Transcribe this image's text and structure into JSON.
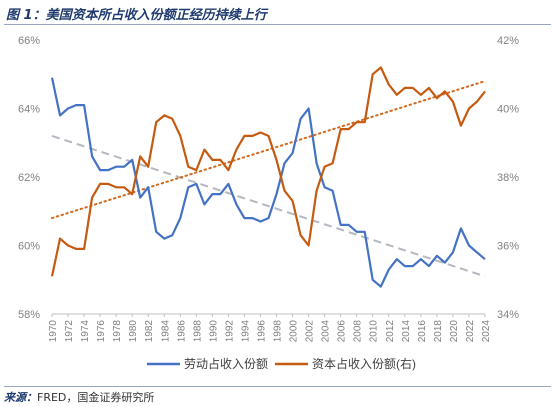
{
  "figure": {
    "title": "图 1：美国资本所占收入份额正经历持续上行",
    "source_label": "来源：",
    "source_text": "FRED，国金证券研究所"
  },
  "colors": {
    "labor": "#4472c4",
    "capital": "#c55a11",
    "labor_trend": "#b4b8c0",
    "capital_trend": "#d2691e",
    "axis_text": "#808080",
    "title": "#1f3a6e"
  },
  "chart_data": {
    "type": "line",
    "x": [
      1970,
      1971,
      1972,
      1973,
      1974,
      1975,
      1976,
      1977,
      1978,
      1979,
      1980,
      1981,
      1982,
      1983,
      1984,
      1985,
      1986,
      1987,
      1988,
      1989,
      1990,
      1991,
      1992,
      1993,
      1994,
      1995,
      1996,
      1997,
      1998,
      1999,
      2000,
      2001,
      2002,
      2003,
      2004,
      2005,
      2006,
      2007,
      2008,
      2009,
      2010,
      2011,
      2012,
      2013,
      2014,
      2015,
      2016,
      2017,
      2018,
      2019,
      2020,
      2021,
      2022,
      2023,
      2024
    ],
    "x_tick_labels": [
      "1970",
      "1972",
      "1974",
      "1976",
      "1978",
      "1980",
      "1982",
      "1984",
      "1986",
      "1988",
      "1990",
      "1992",
      "1994",
      "1996",
      "1998",
      "2000",
      "2002",
      "2004",
      "2006",
      "2008",
      "2010",
      "2012",
      "2014",
      "2016",
      "2018",
      "2020",
      "2022",
      "2024"
    ],
    "y_left": {
      "min": 58,
      "max": 66,
      "ticks": [
        "58%",
        "60%",
        "62%",
        "64%",
        "66%"
      ]
    },
    "y_right": {
      "min": 34,
      "max": 42,
      "ticks": [
        "34%",
        "36%",
        "38%",
        "40%",
        "42%"
      ]
    },
    "grid": false,
    "legend_position": "bottom",
    "series": [
      {
        "name": "劳动占收入份额",
        "axis": "left",
        "style": "solid",
        "values": [
          64.9,
          63.8,
          64.0,
          64.1,
          64.1,
          62.6,
          62.2,
          62.2,
          62.3,
          62.3,
          62.5,
          61.4,
          61.7,
          60.4,
          60.2,
          60.3,
          60.8,
          61.7,
          61.8,
          61.2,
          61.5,
          61.5,
          61.8,
          61.2,
          60.8,
          60.8,
          60.7,
          60.8,
          61.5,
          62.4,
          62.7,
          63.7,
          64.0,
          62.4,
          61.7,
          61.6,
          60.6,
          60.6,
          60.4,
          60.4,
          59.0,
          58.8,
          59.3,
          59.6,
          59.4,
          59.4,
          59.6,
          59.4,
          59.7,
          59.5,
          59.8,
          60.5,
          60.0,
          59.8,
          59.6
        ]
      },
      {
        "name": "资本占收入份额(右)",
        "axis": "right",
        "style": "solid",
        "values": [
          35.1,
          36.2,
          36.0,
          35.9,
          35.9,
          37.4,
          37.8,
          37.8,
          37.7,
          37.7,
          37.5,
          38.6,
          38.3,
          39.6,
          39.8,
          39.7,
          39.2,
          38.3,
          38.2,
          38.8,
          38.5,
          38.5,
          38.2,
          38.8,
          39.2,
          39.2,
          39.3,
          39.2,
          38.5,
          37.6,
          37.3,
          36.3,
          36.0,
          37.6,
          38.3,
          38.4,
          39.4,
          39.4,
          39.6,
          39.6,
          41.0,
          41.2,
          40.7,
          40.4,
          40.6,
          40.6,
          40.4,
          40.6,
          40.3,
          40.5,
          40.2,
          39.5,
          40.0,
          40.2,
          40.5
        ]
      }
    ],
    "trendlines": [
      {
        "of": "劳动占收入份额",
        "axis": "left",
        "style": "dashed",
        "from": [
          1970,
          63.2
        ],
        "to": [
          2024,
          59.1
        ]
      },
      {
        "of": "资本占收入份额(右)",
        "axis": "right",
        "style": "dotted",
        "from": [
          1970,
          36.8
        ],
        "to": [
          2024,
          40.8
        ]
      }
    ]
  }
}
